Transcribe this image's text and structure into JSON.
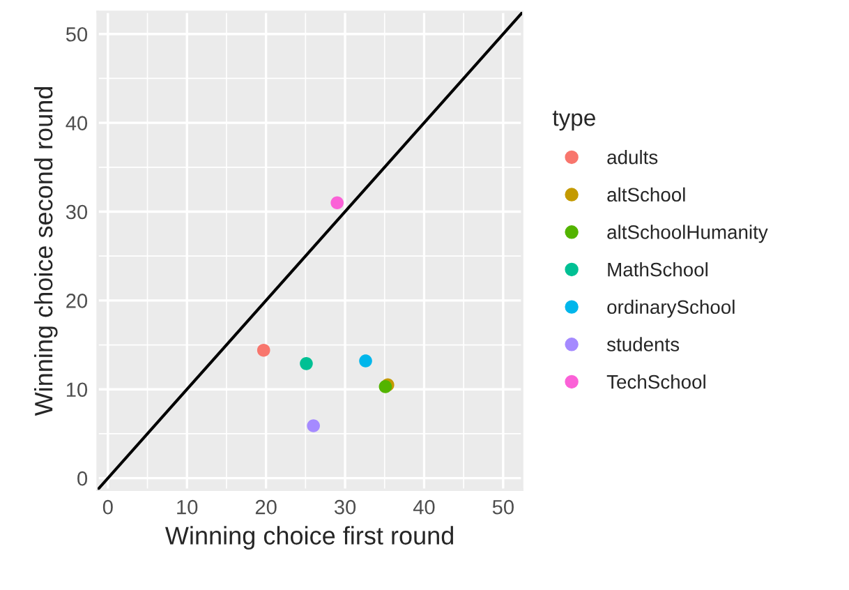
{
  "chart_data": {
    "type": "scatter",
    "xlabel": "Winning choice first round",
    "ylabel": "Winning choice second round",
    "legend_title": "type",
    "xlim": [
      -1.3,
      52.4
    ],
    "ylim": [
      -1.3,
      52.5
    ],
    "xticks": [
      0,
      10,
      20,
      30,
      40,
      50
    ],
    "yticks": [
      0,
      10,
      20,
      30,
      40,
      50
    ],
    "grid": true,
    "legend": "right",
    "marker": "circle",
    "series": [
      {
        "name": "adults",
        "color": "#f8766d",
        "x": [
          19.7
        ],
        "values": [
          14.4
        ]
      },
      {
        "name": "altSchool",
        "color": "#c49a00",
        "x": [
          35.4
        ],
        "values": [
          10.5
        ]
      },
      {
        "name": "altSchoolHumanity",
        "color": "#53b400",
        "x": [
          35.1
        ],
        "values": [
          10.3
        ]
      },
      {
        "name": "MathSchool",
        "color": "#00c094",
        "x": [
          25.1
        ],
        "values": [
          12.9
        ]
      },
      {
        "name": "ordinarySchool",
        "color": "#00b6eb",
        "x": [
          32.6
        ],
        "values": [
          13.2
        ]
      },
      {
        "name": "students",
        "color": "#a58aff",
        "x": [
          26.0
        ],
        "values": [
          5.9
        ]
      },
      {
        "name": "TechSchool",
        "color": "#fb61d7",
        "x": [
          29.0
        ],
        "values": [
          31.0
        ]
      },
      {
        "type": "line",
        "marker": "none",
        "color": "#000000",
        "x": [
          -1.3,
          52.4
        ],
        "values": [
          -1.3,
          52.4
        ]
      }
    ]
  }
}
